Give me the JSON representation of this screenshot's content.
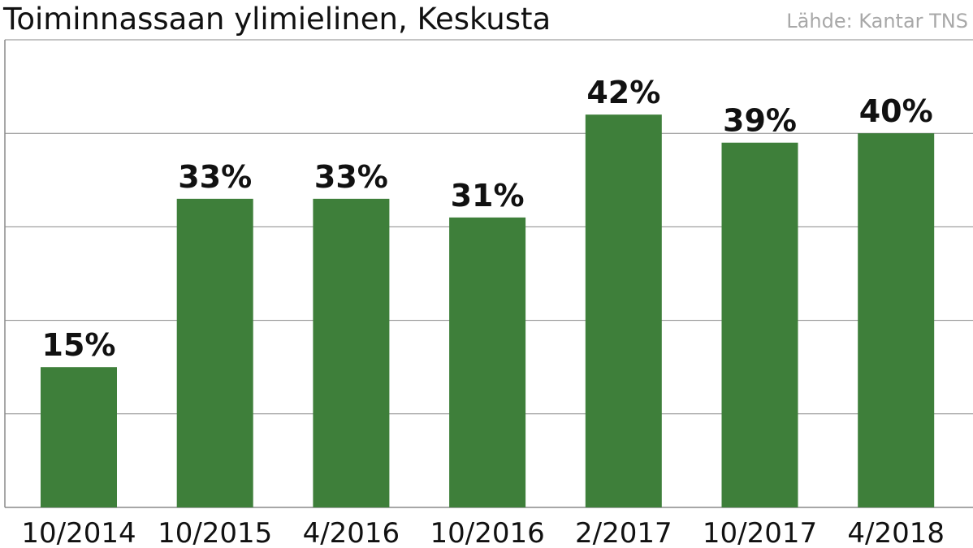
{
  "chart_data": {
    "type": "bar",
    "title": "Toiminnassaan ylimielinen, Keskusta",
    "source": "Lähde: Kantar TNS",
    "categories": [
      "10/2014",
      "10/2015",
      "4/2016",
      "10/2016",
      "2/2017",
      "10/2017",
      "4/2018"
    ],
    "values": [
      15,
      33,
      33,
      31,
      42,
      39,
      40
    ],
    "value_labels": [
      "15%",
      "33%",
      "33%",
      "31%",
      "42%",
      "39%",
      "40%"
    ],
    "ylim": [
      0,
      50
    ],
    "gridlines": [
      10,
      20,
      30,
      40,
      50
    ],
    "grid": true,
    "bar_color": "#3e7f3a",
    "grid_color": "#8a8a8a",
    "xlabel": "",
    "ylabel": ""
  }
}
